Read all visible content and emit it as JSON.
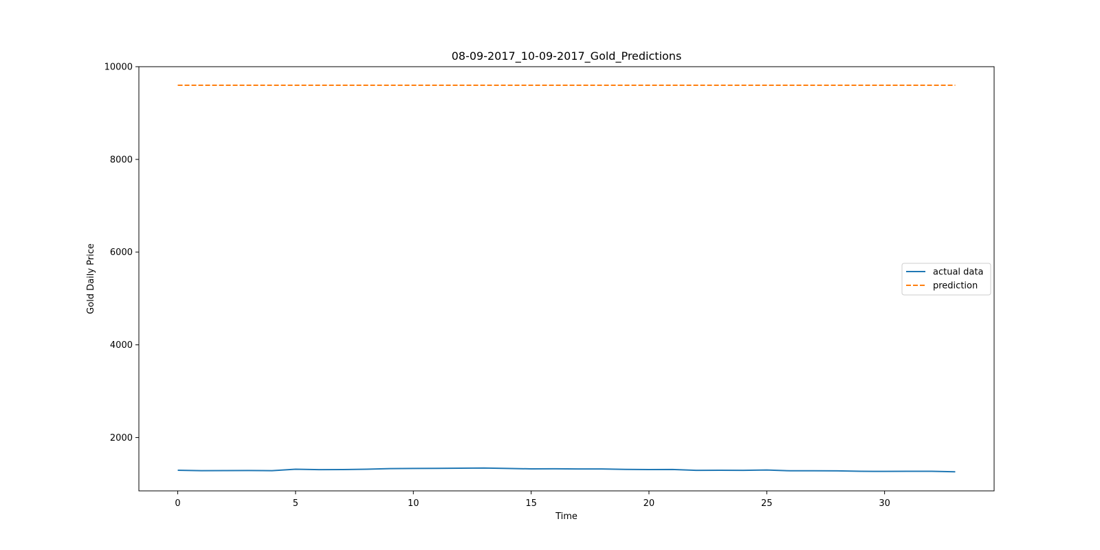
{
  "chart_data": {
    "type": "line",
    "title": "08-09-2017_10-09-2017_Gold_Predictions",
    "xlabel": "Time",
    "ylabel": "Gold Daily Price",
    "xlim": [
      -1.65,
      34.65
    ],
    "ylim": [
      850,
      10000
    ],
    "xticks": [
      0,
      5,
      10,
      15,
      20,
      25,
      30
    ],
    "yticks": [
      2000,
      4000,
      6000,
      8000,
      10000
    ],
    "grid": false,
    "legend_position": "center-right",
    "series": [
      {
        "name": "actual data",
        "color": "#1f77b4",
        "line_style": "solid",
        "x": [
          0,
          1,
          2,
          3,
          4,
          5,
          6,
          7,
          8,
          9,
          10,
          11,
          12,
          13,
          14,
          15,
          16,
          17,
          18,
          19,
          20,
          21,
          22,
          23,
          24,
          25,
          26,
          27,
          28,
          29,
          30,
          31,
          32,
          33
        ],
        "values": [
          1295,
          1285,
          1287,
          1290,
          1285,
          1318,
          1307,
          1310,
          1318,
          1330,
          1333,
          1335,
          1340,
          1343,
          1333,
          1325,
          1327,
          1323,
          1322,
          1313,
          1310,
          1312,
          1293,
          1295,
          1293,
          1300,
          1283,
          1283,
          1282,
          1273,
          1270,
          1273,
          1273,
          1262
        ]
      },
      {
        "name": "prediction",
        "color": "#ff7f0e",
        "line_style": "dashed",
        "x": [
          0,
          1,
          2,
          3,
          4,
          5,
          6,
          7,
          8,
          9,
          10,
          11,
          12,
          13,
          14,
          15,
          16,
          17,
          18,
          19,
          20,
          21,
          22,
          23,
          24,
          25,
          26,
          27,
          28,
          29,
          30,
          31,
          32,
          33
        ],
        "values": [
          9600,
          9600,
          9600,
          9600,
          9600,
          9600,
          9600,
          9600,
          9600,
          9600,
          9600,
          9600,
          9600,
          9600,
          9600,
          9600,
          9600,
          9600,
          9600,
          9600,
          9600,
          9600,
          9600,
          9600,
          9600,
          9600,
          9600,
          9600,
          9600,
          9600,
          9600,
          9600,
          9600,
          9600
        ]
      }
    ]
  }
}
